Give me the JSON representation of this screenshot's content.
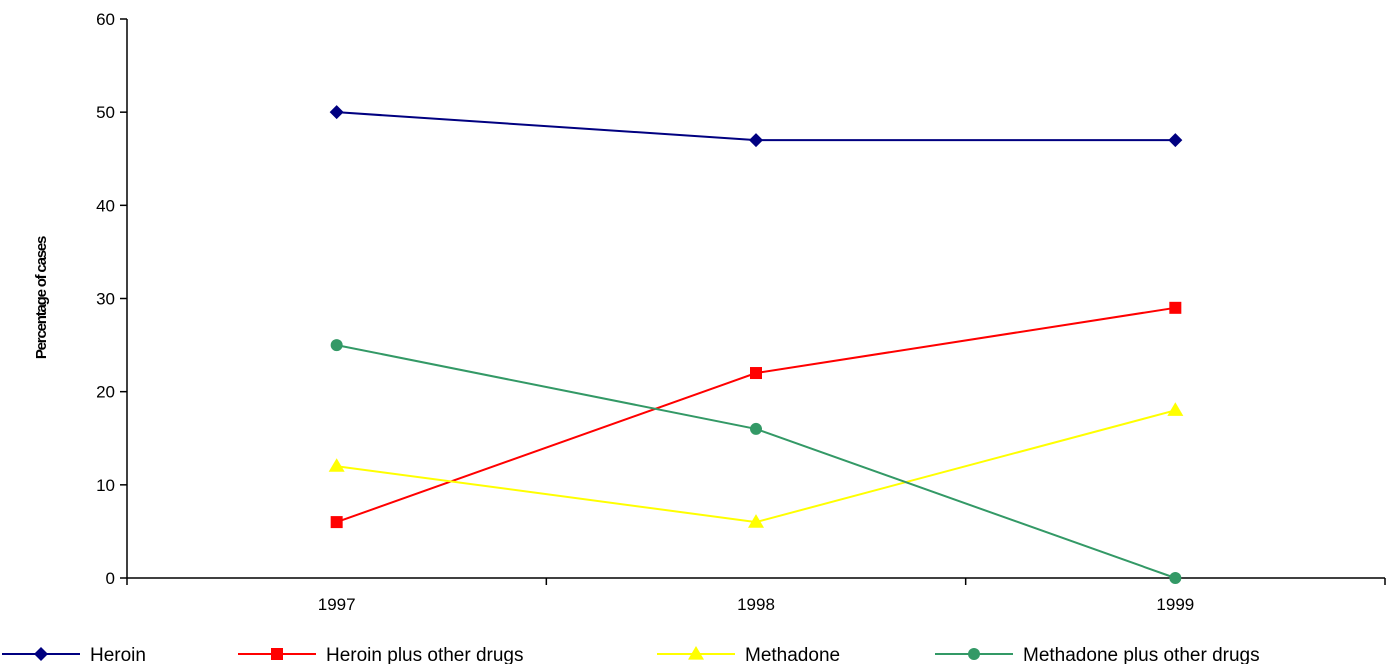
{
  "chart_data": {
    "type": "line",
    "title": "",
    "xlabel": "",
    "ylabel": "Percentage of cases",
    "categories": [
      "1997",
      "1998",
      "1999"
    ],
    "ylim": [
      0,
      60
    ],
    "yticks": [
      "0",
      "10",
      "20",
      "30",
      "40",
      "50",
      "60"
    ],
    "grid": false,
    "legend_position": "bottom",
    "series": [
      {
        "name": "Heroin",
        "values": [
          50,
          47,
          47
        ],
        "color": "#000080",
        "marker": "diamond"
      },
      {
        "name": "Heroin plus other drugs",
        "values": [
          6,
          22,
          29
        ],
        "color": "#ff0000",
        "marker": "square"
      },
      {
        "name": "Methadone",
        "values": [
          12,
          6,
          18
        ],
        "color": "#ffff00",
        "marker": "triangle"
      },
      {
        "name": "Methadone plus other drugs",
        "values": [
          25,
          16,
          0
        ],
        "color": "#339966",
        "marker": "circle"
      }
    ]
  }
}
